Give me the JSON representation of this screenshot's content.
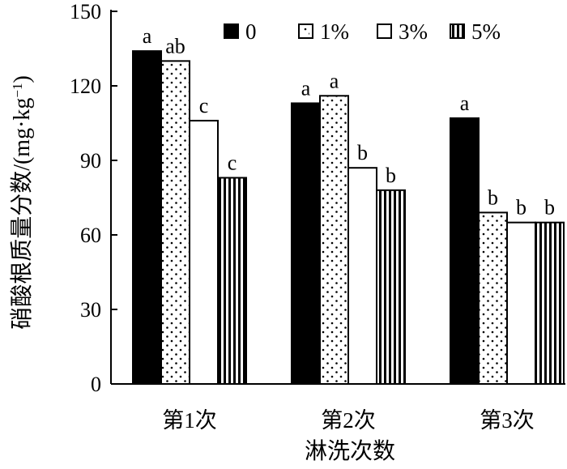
{
  "chart_data": {
    "type": "bar",
    "title": "",
    "xlabel": "淋洗次数",
    "ylabel": "硝酸根质量分数/(mg·kg⁻¹)",
    "ylabel_parts": {
      "main": "硝酸根质量分数/(mg·kg",
      "sup": "−1",
      "close": ")"
    },
    "ylim": [
      0,
      150
    ],
    "yticks": [
      0,
      30,
      60,
      90,
      120,
      150
    ],
    "categories": [
      "第1次",
      "第2次",
      "第3次"
    ],
    "series": [
      {
        "name": "0",
        "pattern": "solid",
        "values": [
          134,
          113,
          107
        ],
        "labels": [
          "a",
          "a",
          "a"
        ]
      },
      {
        "name": "1%",
        "pattern": "dots",
        "values": [
          130,
          116,
          69
        ],
        "labels": [
          "ab",
          "a",
          "b"
        ]
      },
      {
        "name": "3%",
        "pattern": "white",
        "values": [
          106,
          87,
          65
        ],
        "labels": [
          "c",
          "b",
          "b"
        ]
      },
      {
        "name": "5%",
        "pattern": "vstripes",
        "values": [
          83,
          78,
          65
        ],
        "labels": [
          "c",
          "b",
          "b"
        ]
      }
    ],
    "grid": false,
    "legend_position": "top-right",
    "colors": {
      "bar_fill": "#000000",
      "background": "#ffffff"
    }
  }
}
